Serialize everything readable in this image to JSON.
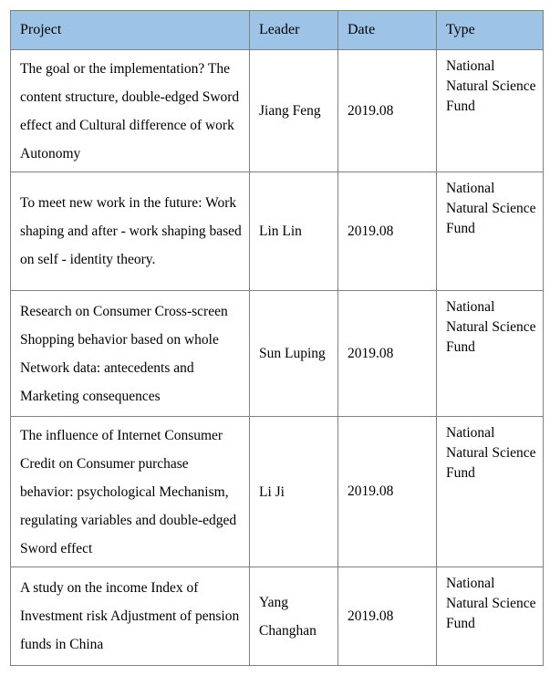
{
  "table": {
    "headers": [
      "Project",
      "Leader",
      "Date",
      "Type"
    ],
    "rows": [
      {
        "project": "The goal or the implementation? The content structure, double-edged Sword effect and Cultural difference of work Autonomy",
        "leader": "Jiang Feng",
        "date": "2019.08",
        "type": "National Natural Science Fund"
      },
      {
        "project": "To meet new work in the future: Work shaping and after - work shaping based on self - identity theory.",
        "leader": "Lin Lin",
        "date": "2019.08",
        "type": "National Natural Science Fund"
      },
      {
        "project": "Research on Consumer Cross-screen Shopping behavior based on whole Network data: antecedents and Marketing consequences",
        "leader": "Sun Luping",
        "date": "2019.08",
        "type": "National Natural Science Fund"
      },
      {
        "project": "The influence of Internet Consumer Credit on Consumer purchase behavior: psychological Mechanism, regulating variables and double-edged Sword effect",
        "leader": "Li Ji",
        "date": "2019.08",
        "type": "National Natural Science Fund"
      },
      {
        "project": "A study on the income Index of Investment risk Adjustment of pension funds in China",
        "leader": "Yang Changhan",
        "date": "2019.08",
        "type": "National Natural Science Fund"
      }
    ]
  },
  "colors": {
    "header_bg": "#9DC3E6",
    "border": "#808080",
    "text": "#000000",
    "page_bg": "#FFFFFF"
  }
}
